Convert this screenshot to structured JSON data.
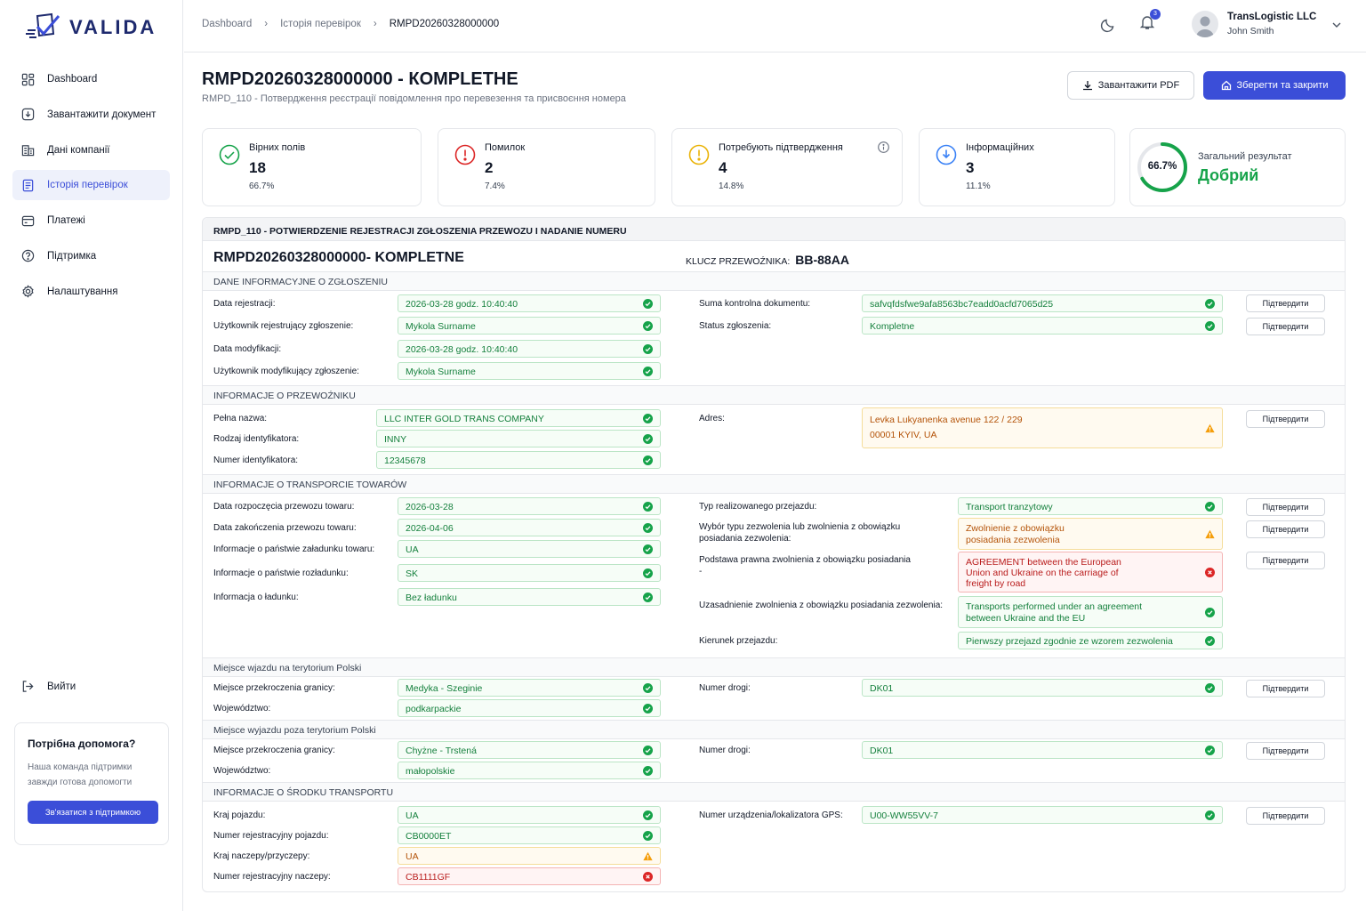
{
  "app": {
    "logo": "VALIDA"
  },
  "sidebar": {
    "items": [
      {
        "label": "Dashboard",
        "icon": "dashboard-icon"
      },
      {
        "label": "Завантажити документ",
        "icon": "upload-icon"
      },
      {
        "label": "Дані компанії",
        "icon": "building-icon"
      },
      {
        "label": "Історія перевірок",
        "icon": "history-icon",
        "active": true
      },
      {
        "label": "Платежі",
        "icon": "wallet-icon"
      },
      {
        "label": "Підтримка",
        "icon": "help-icon"
      },
      {
        "label": "Налаштування",
        "icon": "gear-icon"
      }
    ],
    "logout": "Вийти",
    "help": {
      "title": "Потрібна допомога?",
      "text1": "Наша команда підтримки",
      "text2": "завжди готова допомогти",
      "button": "Зв'язатися з підтримкою"
    }
  },
  "topbar": {
    "breadcrumbs": [
      "Dashboard",
      "Історія перевірок",
      "RMPD20260328000000"
    ],
    "notifications": "3",
    "company": "TransLogistic LLC",
    "user": "John Smith"
  },
  "page": {
    "title": "RMPD20260328000000 - КОМPLЕТНЕ",
    "subtitle": "RMPD_110 - Потвердження реєстрації повідомлення про перевезення та присвоєння номера",
    "pdf_button": "Завантажити PDF",
    "save_button": "Зберегти та закрити"
  },
  "stats": [
    {
      "label": "Вірних полів",
      "value": "18",
      "pct": "66.7%",
      "color": "#16a34a"
    },
    {
      "label": "Помилок",
      "value": "2",
      "pct": "7.4%",
      "color": "#dc2626"
    },
    {
      "label": "Потребують підтвердження",
      "value": "4",
      "pct": "14.8%",
      "color": "#eab308"
    },
    {
      "label": "Інформаційних",
      "value": "3",
      "pct": "11.1%",
      "color": "#3b82f6"
    }
  ],
  "overall": {
    "label": "Загальний результат",
    "value": "Добрий",
    "pct": "66.7%",
    "fraction": 0.667
  },
  "doc": {
    "header": "RMPD_110 - POTWIERDZENIE REJESTRACJI ZGŁOSZENIA PRZEWOZU I NADANIE NUMERU",
    "title": "RMPD20260328000000- KOMPLETNE",
    "key_label": "KLUCZ PRZEWOŹNIKA:",
    "key_value": "BB-88AA",
    "confirm": "Підтвердити",
    "sections": {
      "s1": "DANE INFORMACYJNE O ZGŁOSZENIU",
      "s2": "INFORMACJE O PRZEWOŹNIKU",
      "s3": "INFORMACJE O TRANSPORCIE TOWARÓW",
      "s4": "Miejsce wjazdu na terytorium Polski",
      "s5": "Miejsce wyjazdu poza terytorium Polski",
      "s6": "INFORMACJE O ŚRODKU TRANSPORTU"
    },
    "fields": {
      "f1": {
        "label": "Data rejestracji:",
        "value": "2026-03-28 godz. 10:40:40"
      },
      "f2": {
        "label": "Użytkownik rejestrujący zgłoszenie:",
        "value": "Mykola Surname"
      },
      "f3": {
        "label": "Data modyfikacji:",
        "value": "2026-03-28 godz. 10:40:40"
      },
      "f4": {
        "label": "Użytkownik modyfikujący zgłoszenie:",
        "value": "Mykola Surname"
      },
      "f5": {
        "label": "Suma kontrolna dokumentu:",
        "value": "safvqfdsfwe9afa8563bc7eadd0acfd7065d25"
      },
      "f6": {
        "label": "Status zgłoszenia:",
        "value": "Kompletne"
      },
      "f7": {
        "label": "Pełna nazwa:",
        "value": "LLC INTER GOLD TRANS COMPANY"
      },
      "f8": {
        "label": "Rodzaj identyfikatora:",
        "value": "INNY"
      },
      "f9": {
        "label": "Numer identyfikatora:",
        "value": "12345678"
      },
      "f10": {
        "label": "Adres:",
        "line1": "Levka Lukyanenka avenue 122 / 229",
        "line2": "00001 KYIV, UA"
      },
      "f11": {
        "label": "Data rozpoczęcia przewozu towaru:",
        "value": "2026-03-28"
      },
      "f12": {
        "label": "Data zakończenia przewozu towaru:",
        "value": "2026-04-06"
      },
      "f13": {
        "label": "Informacje o państwie załadunku towaru:",
        "value": "UA"
      },
      "f14": {
        "label": "Informacje o państwie rozładunku:",
        "value": "SK"
      },
      "f15": {
        "label": "Informacja o ładunku:",
        "value": "Bez ładunku"
      },
      "f16": {
        "label": "Typ realizowanego przejazdu:",
        "value": "Transport tranzytowy"
      },
      "f17": {
        "label1": "Wybór typu zezwolenia lub zwolnienia z obowiązku",
        "label2": "posiadania zezwolenia:",
        "line1": "Zwolnienie z obowiązku",
        "line2": "posiadania zezwolenia"
      },
      "f18": {
        "label1": "Podstawa prawna zwolnienia z obowiązku posiadania",
        "label2": "-",
        "line1": "AGREEMENT between the European",
        "line2": "Union and Ukraine on the carriage of",
        "line3": "freight by road"
      },
      "f19": {
        "label": "Uzasadnienie zwolnienia z obowiązku posiadania zezwolenia:",
        "line1": "Transports performed under an agreement",
        "line2": "between Ukraine and the EU"
      },
      "f20": {
        "label": "Kierunek przejazdu:",
        "value": "Pierwszy przejazd zgodnie ze wzorem zezwolenia"
      },
      "f21": {
        "label": "Miejsce przekroczenia granicy:",
        "value": "Medyka - Szeginie"
      },
      "f22": {
        "label": "Województwo:",
        "value": "podkarpackie"
      },
      "f23": {
        "label": "Numer drogi:",
        "value": "DK01"
      },
      "f24": {
        "label": "Miejsce przekroczenia granicy:",
        "value": "Chyżne - Trstená"
      },
      "f25": {
        "label": "Województwo:",
        "value": "małopolskie"
      },
      "f26": {
        "label": "Numer drogi:",
        "value": "DK01"
      },
      "f27": {
        "label": "Kraj pojazdu:",
        "value": "UA"
      },
      "f28": {
        "label": "Numer rejestracyjny pojazdu:",
        "value": "CB0000ET"
      },
      "f29": {
        "label": "Kraj naczepy/przyczepy:",
        "value": "UA"
      },
      "f30": {
        "label": "Numer rejestracyjny naczepy:",
        "value": "CB1111GF"
      },
      "f31": {
        "label": "Numer urządzenia/lokalizatora GPS:",
        "value": "U00-WW55VV-7"
      }
    }
  }
}
